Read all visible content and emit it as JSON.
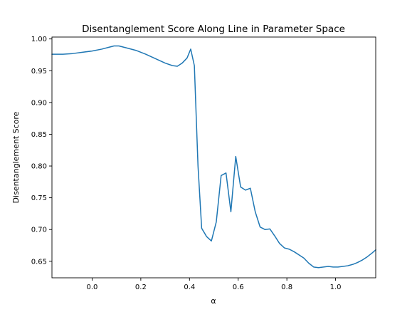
{
  "chart_data": {
    "type": "line",
    "title": "Disentanglement Score Along Line in Parameter Space",
    "xlabel": "α",
    "ylabel": "Disentanglement Score",
    "xlim": [
      -0.165,
      1.165
    ],
    "ylim": [
      0.624,
      1.003
    ],
    "xticks": [
      0.0,
      0.2,
      0.4,
      0.6,
      0.8,
      1.0
    ],
    "xtick_labels": [
      "0.0",
      "0.2",
      "0.4",
      "0.6",
      "0.8",
      "1.0"
    ],
    "yticks": [
      0.65,
      0.7,
      0.75,
      0.8,
      0.85,
      0.9,
      0.95,
      1.0
    ],
    "ytick_labels": [
      "0.65",
      "0.70",
      "0.75",
      "0.80",
      "0.85",
      "0.90",
      "0.95",
      "1.00"
    ],
    "grid": false,
    "line_color": "#1f77b4",
    "series": [
      {
        "x": [
          -0.165,
          -0.12,
          -0.08,
          -0.04,
          0.0,
          0.04,
          0.07,
          0.09,
          0.11,
          0.14,
          0.18,
          0.22,
          0.26,
          0.3,
          0.33,
          0.35,
          0.37,
          0.39,
          0.405,
          0.42,
          0.435,
          0.45,
          0.47,
          0.49,
          0.51,
          0.53,
          0.55,
          0.57,
          0.59,
          0.61,
          0.63,
          0.65,
          0.67,
          0.69,
          0.71,
          0.73,
          0.75,
          0.77,
          0.79,
          0.81,
          0.83,
          0.85,
          0.87,
          0.89,
          0.91,
          0.93,
          0.95,
          0.97,
          0.99,
          1.01,
          1.03,
          1.05,
          1.07,
          1.09,
          1.11,
          1.13,
          1.15,
          1.165
        ],
        "y": [
          0.976,
          0.976,
          0.977,
          0.979,
          0.981,
          0.984,
          0.987,
          0.989,
          0.989,
          0.986,
          0.982,
          0.976,
          0.969,
          0.962,
          0.958,
          0.957,
          0.962,
          0.97,
          0.984,
          0.958,
          0.8,
          0.702,
          0.689,
          0.682,
          0.712,
          0.785,
          0.789,
          0.728,
          0.815,
          0.767,
          0.762,
          0.765,
          0.728,
          0.704,
          0.7,
          0.701,
          0.69,
          0.678,
          0.671,
          0.669,
          0.665,
          0.66,
          0.655,
          0.647,
          0.641,
          0.64,
          0.641,
          0.642,
          0.641,
          0.641,
          0.642,
          0.643,
          0.645,
          0.648,
          0.652,
          0.657,
          0.663,
          0.668
        ]
      }
    ]
  }
}
